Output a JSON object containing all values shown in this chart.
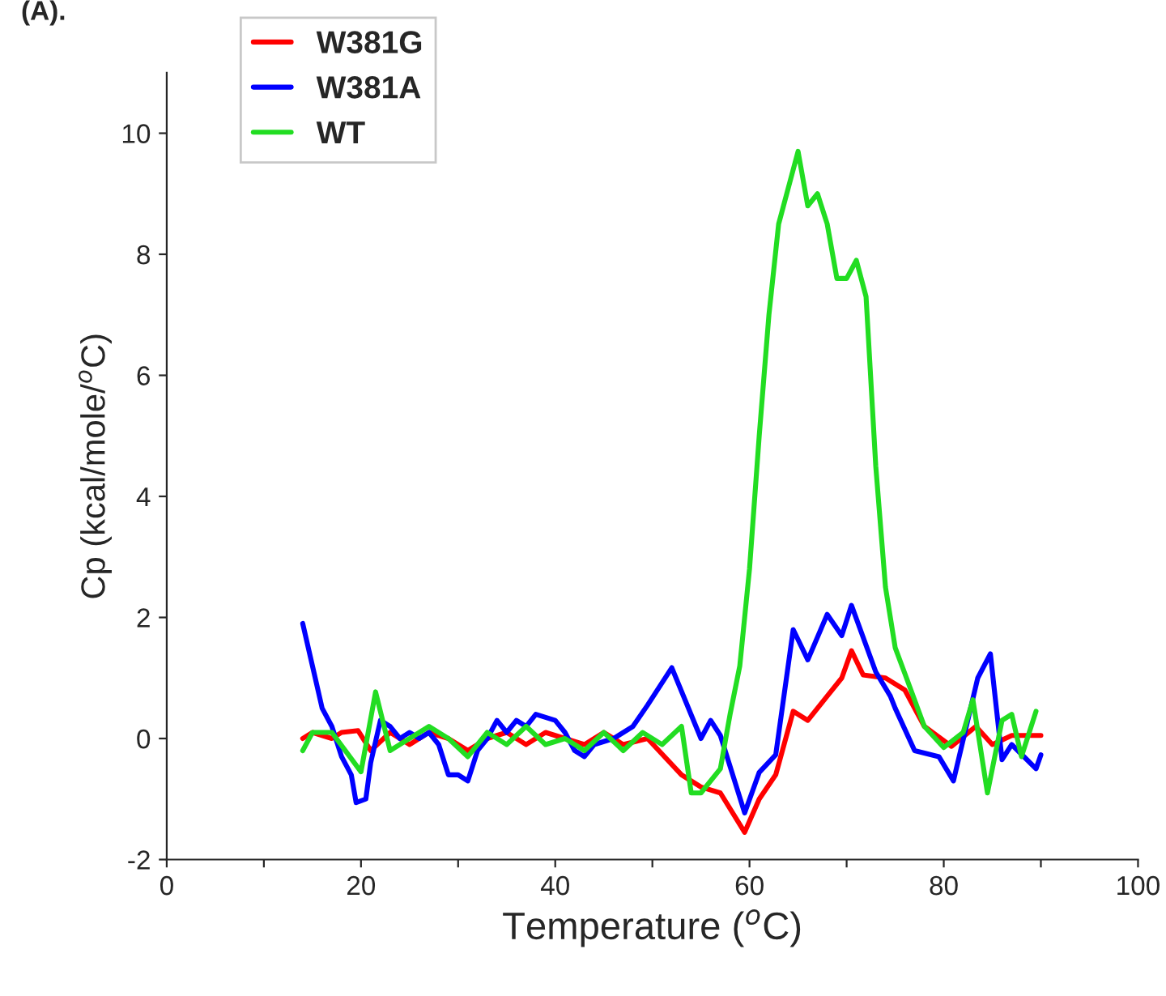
{
  "chart_data": {
    "type": "line",
    "title": "(A).",
    "xlabel": "Temperature ($^{o}$C)",
    "ylabel": "Cp (kcal/mole/$^{o}$C)",
    "xlim": [
      0,
      100
    ],
    "xticks": [
      0,
      {
        "value": 10,
        "label": null
      },
      20,
      {
        "value": 30,
        "label": null
      },
      40,
      {
        "value": 50,
        "label": null
      },
      60,
      {
        "value": 70,
        "label": null
      },
      80,
      {
        "value": 90,
        "label": null
      },
      100
    ],
    "ylim": [
      -2,
      11
    ],
    "yticks": [
      -2,
      0,
      2,
      4,
      6,
      8,
      10
    ],
    "grid": false,
    "legend": "top left",
    "line_style": "solid",
    "marker": "none",
    "series": [
      {
        "name": "W381G",
        "color": "#ff0000",
        "x": [
          14,
          15,
          17,
          18,
          19.7,
          21,
          23,
          25,
          27,
          29,
          31,
          33,
          35,
          37,
          39,
          41,
          43,
          45,
          47,
          49.5,
          53,
          55,
          57,
          59.5,
          61,
          62.7,
          64.5,
          66,
          68,
          69.5,
          70.5,
          71.7,
          74,
          76,
          78,
          80.8,
          83.3,
          85,
          87,
          90
        ],
        "values": [
          0,
          0.1,
          0,
          0.1,
          0.13,
          -0.2,
          0.1,
          -0.1,
          0.1,
          0,
          -0.2,
          0,
          0.1,
          -0.1,
          0.1,
          0,
          -0.1,
          0.1,
          -0.1,
          0,
          -0.6,
          -0.8,
          -0.9,
          -1.55,
          -1,
          -0.6,
          0.45,
          0.3,
          0.7,
          1,
          1.45,
          1.05,
          1,
          0.8,
          0.2,
          -0.13,
          0.2,
          -0.1,
          0.05,
          0.05
        ]
      },
      {
        "name": "W381A",
        "color": "#0000ff",
        "x": [
          14,
          15,
          16,
          17,
          18,
          19,
          19.5,
          20.5,
          21,
          22,
          23,
          24,
          25,
          26,
          27,
          28,
          29,
          30,
          31,
          32,
          33,
          34,
          35,
          36,
          37,
          38,
          40,
          41,
          42,
          43,
          44,
          46,
          48,
          49.5,
          52,
          55,
          56,
          57,
          59.5,
          61,
          62.7,
          64.5,
          66,
          68,
          69.5,
          70.5,
          73,
          74.5,
          75,
          77,
          79.5,
          81,
          83.5,
          84.8,
          86,
          87,
          89.5,
          90
        ],
        "values": [
          1.9,
          1.2,
          0.5,
          0.2,
          -0.3,
          -0.6,
          -1.06,
          -1,
          -0.4,
          0.3,
          0.2,
          0,
          0.1,
          0,
          0.1,
          -0.1,
          -0.6,
          -0.6,
          -0.7,
          -0.2,
          0,
          0.3,
          0.1,
          0.3,
          0.2,
          0.4,
          0.3,
          0.1,
          -0.2,
          -0.3,
          -0.1,
          0,
          0.2,
          0.55,
          1.17,
          0,
          0.3,
          0.05,
          -1.23,
          -0.56,
          -0.27,
          1.8,
          1.3,
          2.05,
          1.7,
          2.2,
          1.1,
          0.7,
          0.5,
          -0.2,
          -0.3,
          -0.7,
          1,
          1.4,
          -0.35,
          -0.1,
          -0.5,
          -0.27
        ]
      },
      {
        "name": "WT",
        "color": "#22dd22",
        "x": [
          14,
          15,
          17,
          20,
          21.5,
          23,
          25,
          27,
          29,
          31,
          33,
          35,
          37,
          39,
          41,
          43,
          45,
          47,
          49,
          51,
          53,
          54,
          55,
          57,
          58,
          59,
          60,
          61,
          62,
          63,
          65,
          66,
          67,
          68,
          69,
          70,
          71,
          72,
          73,
          74,
          75,
          76,
          78,
          80,
          82,
          83,
          84.5,
          86,
          87,
          88,
          89.5
        ],
        "values": [
          -0.2,
          0.1,
          0.1,
          -0.55,
          0.77,
          -0.2,
          0,
          0.2,
          0,
          -0.3,
          0.1,
          -0.1,
          0.2,
          -0.1,
          0,
          -0.2,
          0.1,
          -0.2,
          0.1,
          -0.1,
          0.2,
          -0.9,
          -0.9,
          -0.5,
          0.4,
          1.2,
          2.8,
          5,
          7,
          8.5,
          9.7,
          8.8,
          9,
          8.5,
          7.6,
          7.6,
          7.9,
          7.3,
          4.5,
          2.5,
          1.5,
          1.07,
          0.2,
          -0.15,
          0.1,
          0.64,
          -0.9,
          0.3,
          0.4,
          -0.3,
          0.45
        ]
      }
    ]
  }
}
